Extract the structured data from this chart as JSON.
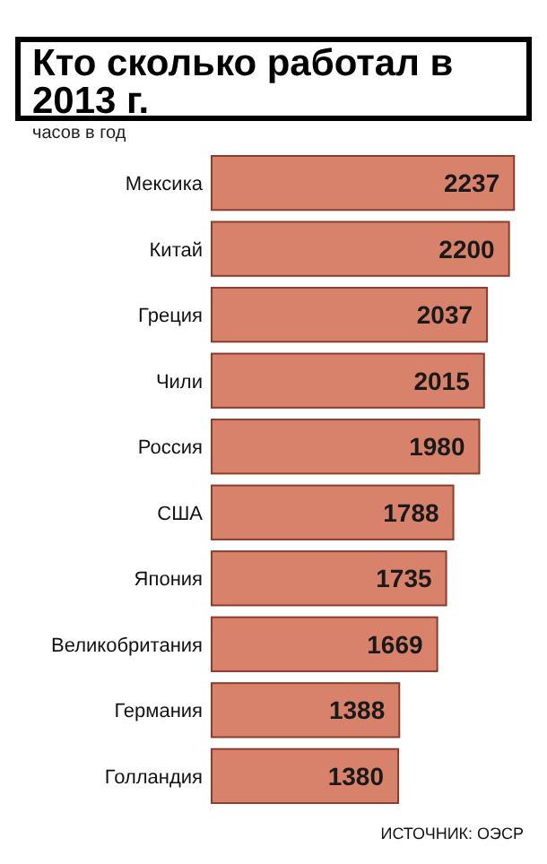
{
  "chart_data": {
    "type": "bar",
    "orientation": "horizontal",
    "title": "Кто сколько работал в 2013 г.",
    "xlabel": "часов в год",
    "categories": [
      "Мексика",
      "Китай",
      "Греция",
      "Чили",
      "Россия",
      "США",
      "Япония",
      "Великобритания",
      "Германия",
      "Голландия"
    ],
    "values": [
      2237,
      2200,
      2037,
      2015,
      1980,
      1788,
      1735,
      1669,
      1388,
      1380
    ],
    "color": "#d9826b",
    "data_labels": true,
    "annotations": [
      "ИСТОЧНИК: ОЭСР"
    ]
  }
}
